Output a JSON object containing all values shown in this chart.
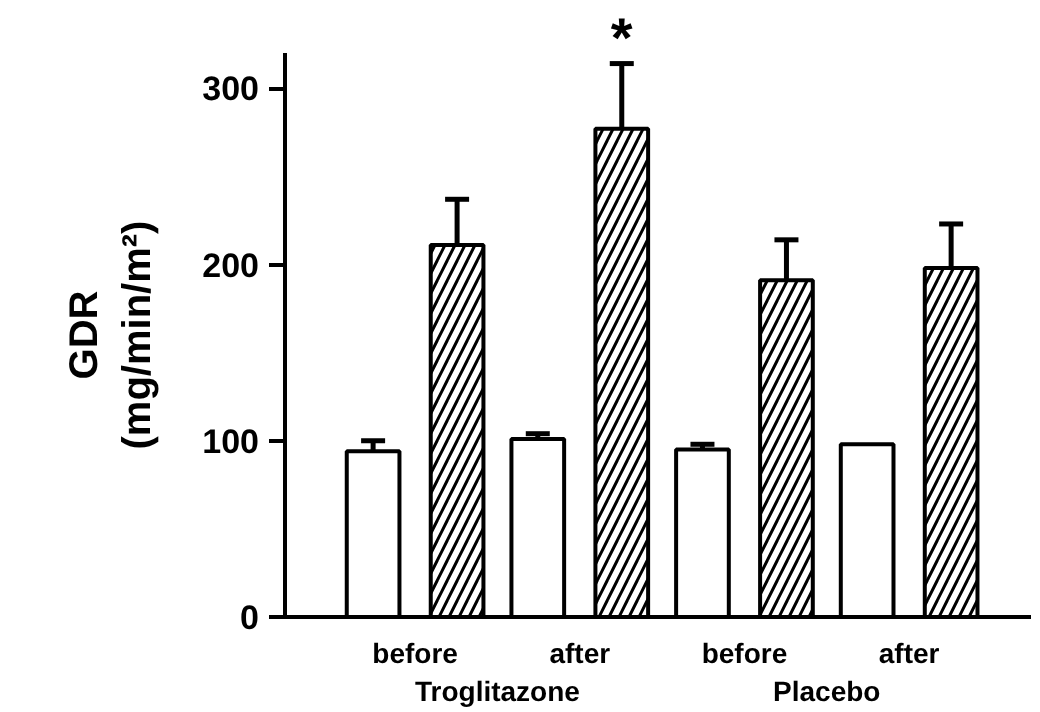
{
  "chart_data": {
    "type": "bar",
    "ylabel": "GDR\n(mg/min/m²)",
    "categories": [
      "before",
      "after",
      "before",
      "after"
    ],
    "series": [
      {
        "color": "#ffffff",
        "values": [
          94,
          101,
          95,
          98
        ],
        "errors": [
          6,
          3,
          3,
          null
        ]
      },
      {
        "color": "#ffffff",
        "values": [
          211,
          277,
          191,
          198
        ],
        "errors": [
          26,
          37,
          23,
          25
        ]
      }
    ],
    "ylim": [
      0,
      320
    ],
    "yticks": [
      0,
      100,
      200,
      300
    ],
    "grid": false,
    "annotations": [
      "Troglitazone",
      "Placebo",
      "*"
    ]
  }
}
